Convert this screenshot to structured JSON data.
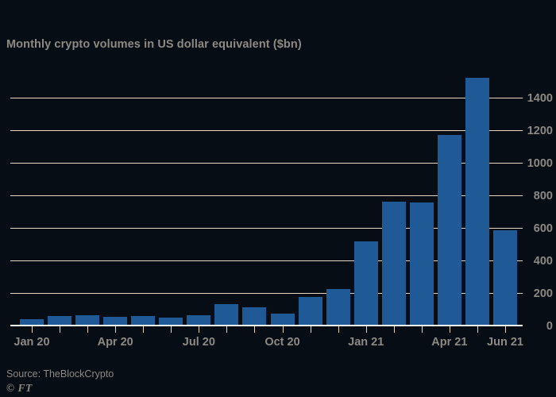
{
  "title": "Monthly crypto volumes in US dollar equivalent ($bn)",
  "source": "Source: TheBlockCrypto",
  "credit": "© FT",
  "colors": {
    "background": "#070d14",
    "bar": "#1f5a96",
    "grid": "#e7d5c5",
    "baseline": "#fdf4ec",
    "text": "#8d8984"
  },
  "chart_data": {
    "type": "bar",
    "title": "Monthly crypto volumes in US dollar equivalent ($bn)",
    "xlabel": "",
    "ylabel": "",
    "categories": [
      "Jan 20",
      "Feb 20",
      "Mar 20",
      "Apr 20",
      "May 20",
      "Jun 20",
      "Jul 20",
      "Aug 20",
      "Sep 20",
      "Oct 20",
      "Nov 20",
      "Dec 20",
      "Jan 21",
      "Feb 21",
      "Mar 21",
      "Apr 21",
      "May 21",
      "Jun 21"
    ],
    "values": [
      42,
      62,
      70,
      57,
      65,
      54,
      70,
      135,
      115,
      80,
      180,
      228,
      520,
      765,
      760,
      1175,
      1525,
      590
    ],
    "ylim": [
      0,
      1565
    ],
    "yticks": [
      0,
      200,
      400,
      600,
      800,
      1000,
      1200,
      1400
    ],
    "ytick_side": "right",
    "x_label_indices": [
      0,
      3,
      6,
      9,
      12,
      15,
      17
    ],
    "grid": "horizontal",
    "legend": null
  }
}
